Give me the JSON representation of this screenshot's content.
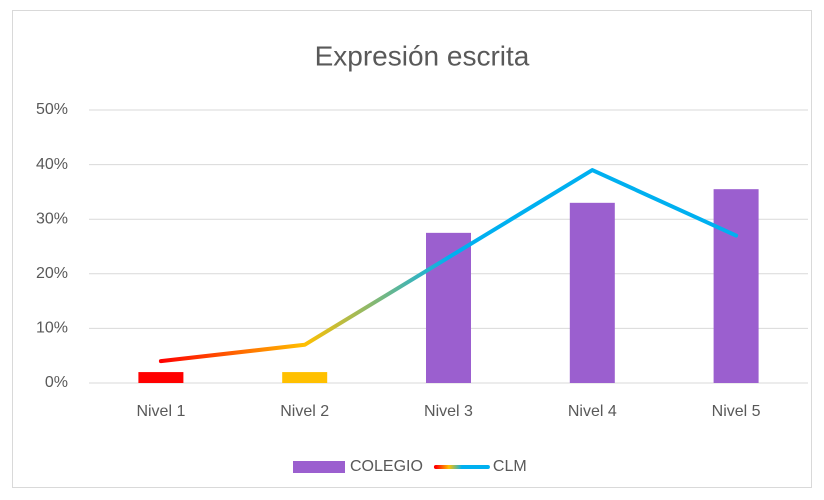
{
  "chart_data": {
    "type": "bar_line",
    "title": "Expresión escrita",
    "categories": [
      "Nivel 1",
      "Nivel 2",
      "Nivel 3",
      "Nivel 4",
      "Nivel 5"
    ],
    "series": [
      {
        "name": "COLEGIO",
        "type": "bar",
        "color": "#9b5fcf",
        "colors": [
          "#ff0000",
          "#ffc000",
          "#9b5fcf",
          "#9b5fcf",
          "#9b5fcf"
        ],
        "values": [
          2,
          2,
          27.5,
          33,
          35.5
        ]
      },
      {
        "name": "CLM",
        "type": "line",
        "color": "#00b0f0",
        "gradient": [
          "#ff0000",
          "#ffc000",
          "#00b0f0",
          "#00b0f0",
          "#00b0f0"
        ],
        "values": [
          4,
          7,
          23,
          39,
          27
        ]
      }
    ],
    "ylim": [
      0,
      50
    ],
    "yticks": [
      {
        "value": 0,
        "label": "0%"
      },
      {
        "value": 10,
        "label": "10%"
      },
      {
        "value": 20,
        "label": "20%"
      },
      {
        "value": 30,
        "label": "30%"
      },
      {
        "value": 40,
        "label": "40%"
      },
      {
        "value": 50,
        "label": "50%"
      }
    ],
    "grid": true,
    "legend": "bottom"
  }
}
